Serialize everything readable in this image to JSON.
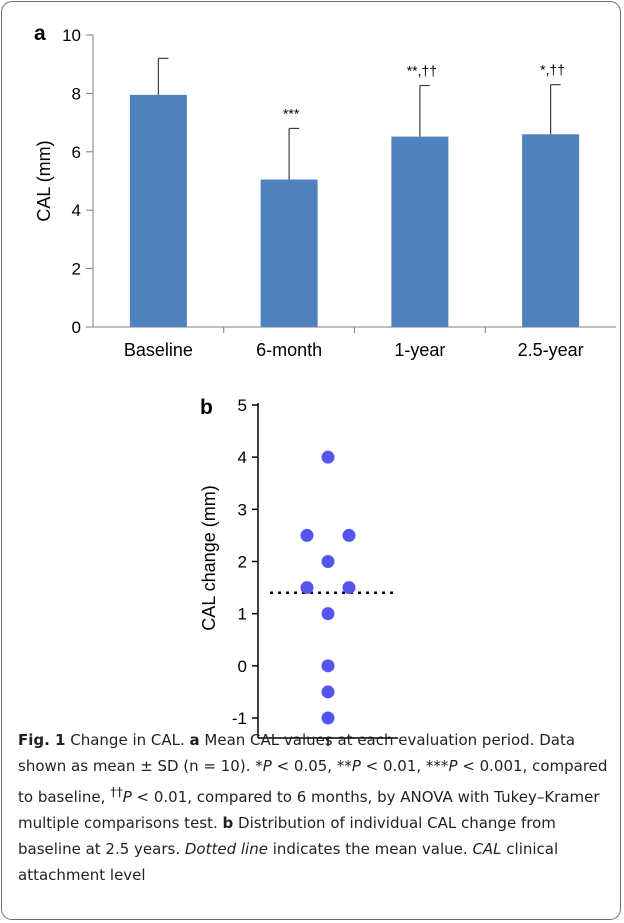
{
  "chart_data": [
    {
      "panel_label": "a",
      "type": "bar",
      "categories": [
        "Baseline",
        "6-month",
        "1-year",
        "2.5-year"
      ],
      "values": [
        7.95,
        5.05,
        6.52,
        6.6
      ],
      "sd": [
        1.25,
        1.75,
        1.75,
        1.7
      ],
      "annotations": [
        "",
        "***",
        "**,††",
        "*,††"
      ],
      "ylabel": "CAL (mm)",
      "ylim": [
        0,
        10
      ],
      "yticks": [
        0,
        2,
        4,
        6,
        8,
        10
      ],
      "bar_color": "#4f81bd",
      "grid": false
    },
    {
      "panel_label": "b",
      "type": "scatter",
      "x_ticks": [
        ""
      ],
      "points": [
        {
          "x": 0,
          "y": 4
        },
        {
          "x": -1,
          "y": 2.5
        },
        {
          "x": 1,
          "y": 2.5
        },
        {
          "x": 0,
          "y": 2
        },
        {
          "x": -1,
          "y": 1.5
        },
        {
          "x": 1,
          "y": 1.5
        },
        {
          "x": 0,
          "y": 1
        },
        {
          "x": 0,
          "y": 0
        },
        {
          "x": 0,
          "y": -0.5
        },
        {
          "x": 0,
          "y": -1
        }
      ],
      "mean": 1.4,
      "ylabel": "CAL change (mm)",
      "ylim": [
        -1,
        5
      ],
      "yticks": [
        "5",
        "4",
        "3",
        "2",
        "1",
        "0",
        "-1"
      ],
      "point_color": "#5555ee",
      "mean_line_style": "dotted",
      "grid": false
    }
  ],
  "caption": {
    "fig": "Fig. 1",
    "t1": "  Change in CAL. ",
    "a": "a",
    "t2": " Mean CAL values at each evaluation period. Data shown as mean ± SD (n = 10). *",
    "p1": "P",
    "t3": " < 0.05, **",
    "p2": "P",
    "t4": " < 0.01, ***",
    "p3": "P",
    "t5": " < 0.001, compared to baseline, ",
    "dag": "††",
    "p4": "P",
    "t6": " < 0.01, compared to 6 months, by ANOVA with Tukey–Kramer multiple comparisons test. ",
    "b": "b",
    "t7": " Distribution of individual CAL change from baseline at 2.5 years. ",
    "dotted": "Dotted line",
    "t8": " indicates the mean value. ",
    "cal": "CAL",
    "t9": " clinical attachment level"
  }
}
